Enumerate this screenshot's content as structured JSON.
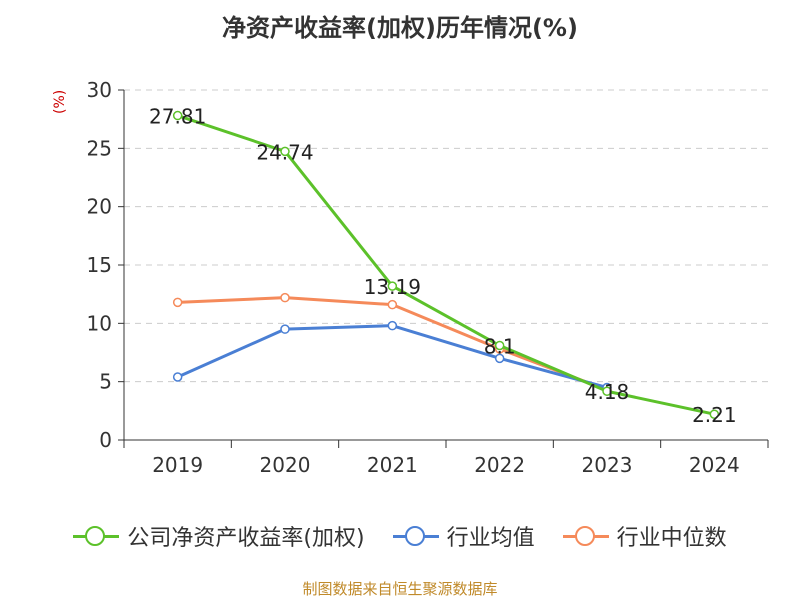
{
  "chart_data": {
    "type": "line",
    "title": "净资产收益率(加权)历年情况(%)",
    "ylabel": "(%)",
    "xlabel": "",
    "ylim": [
      0,
      30
    ],
    "yticks": [
      0,
      5,
      10,
      15,
      20,
      25,
      30
    ],
    "grid": true,
    "legend_position": "bottom",
    "categories": [
      "2019",
      "2020",
      "2021",
      "2022",
      "2023",
      "2024"
    ],
    "series": [
      {
        "name": "公司净资产收益率(加权)",
        "color": "#5cc12a",
        "values": [
          27.81,
          24.74,
          13.19,
          8.1,
          4.18,
          2.21
        ],
        "labels": [
          "27.81",
          "24.74",
          "13.19",
          "8.1",
          "4.18",
          "2.21"
        ]
      },
      {
        "name": "行业均值",
        "color": "#4a7fd4",
        "values": [
          5.4,
          9.5,
          9.8,
          7.0,
          4.5,
          null
        ]
      },
      {
        "name": "行业中位数",
        "color": "#f58a5a",
        "values": [
          11.8,
          12.2,
          11.6,
          7.8,
          4.3,
          null
        ]
      }
    ]
  },
  "footer": "制图数据来自恒生聚源数据库"
}
